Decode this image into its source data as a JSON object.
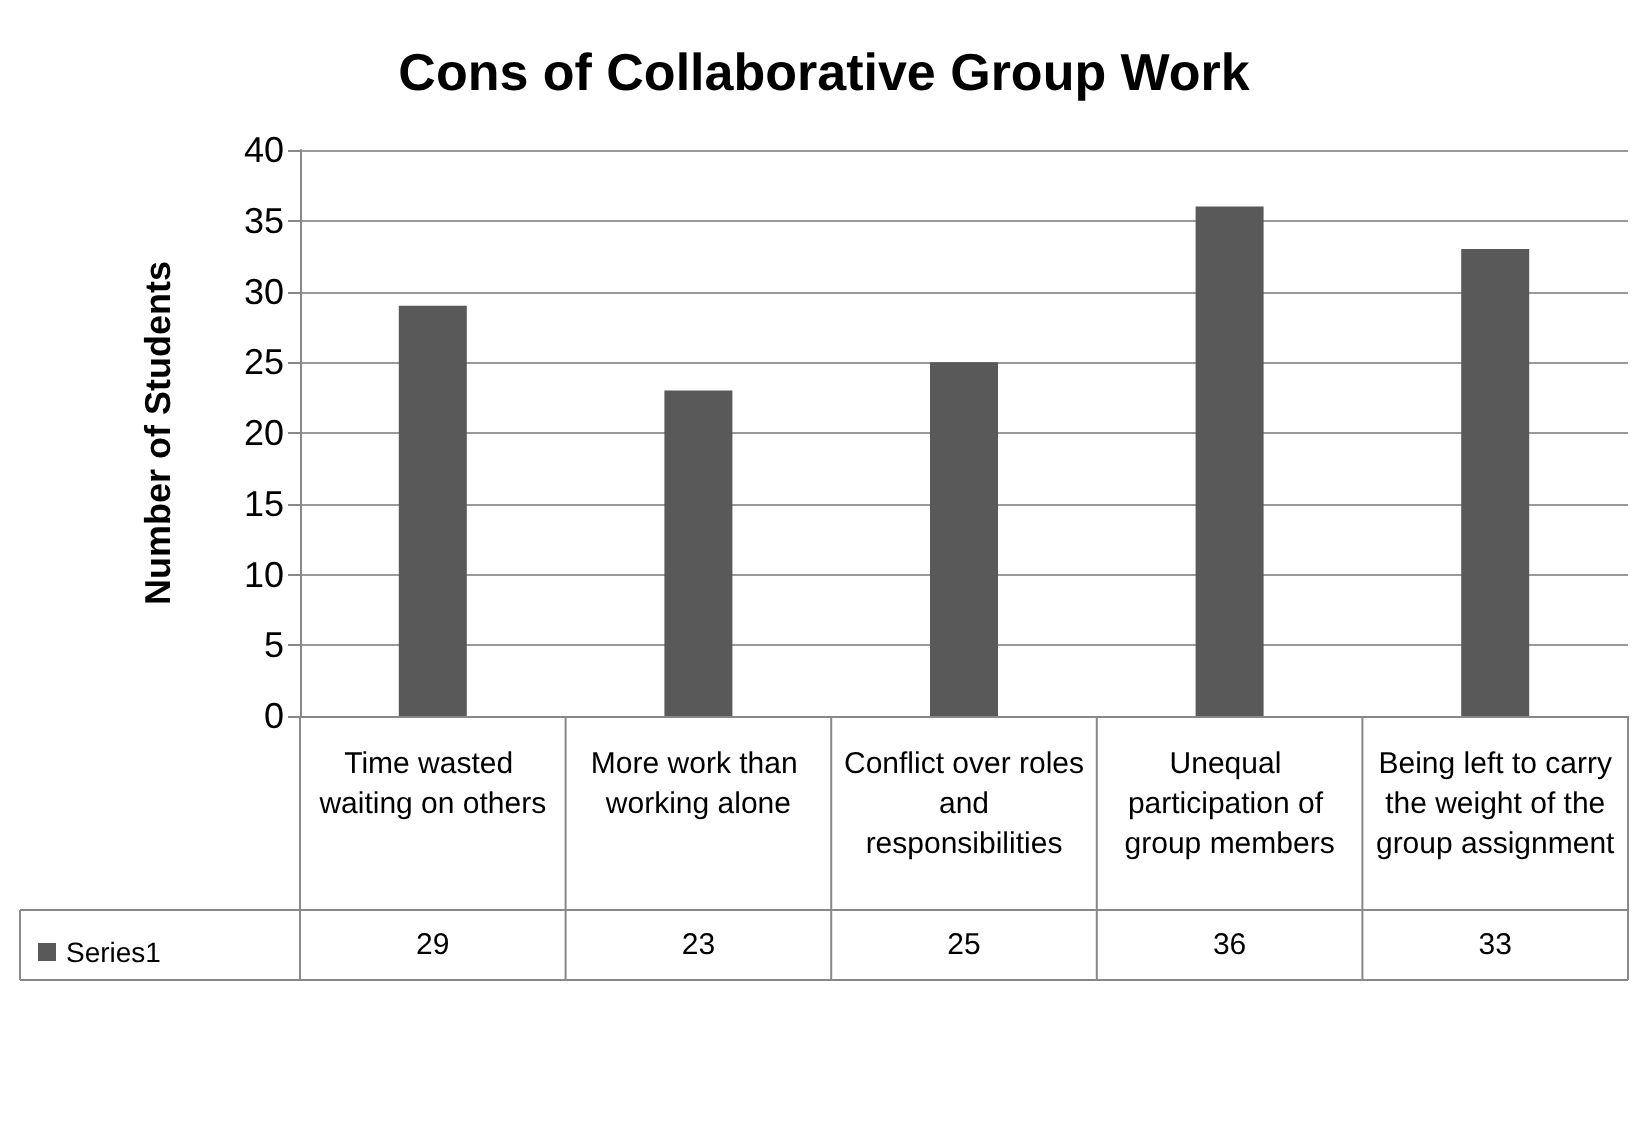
{
  "chart_data": {
    "type": "bar",
    "title": "Cons of Collaborative Group Work",
    "ylabel": "Number of Students",
    "categories": [
      "Time wasted waiting on others",
      "More work than working alone",
      "Conflict over roles and responsibilities",
      "Unequal participation of group members",
      "Being left to carry the weight of the group assignment"
    ],
    "series": [
      {
        "name": "Series1",
        "color": "#595959",
        "values": [
          29,
          23,
          25,
          36,
          33
        ]
      }
    ],
    "ylim": [
      0,
      40
    ],
    "yticks": [
      0,
      5,
      10,
      15,
      20,
      25,
      30,
      35,
      40
    ],
    "grid": "y",
    "legend": "bottom left",
    "data_labels": true
  }
}
